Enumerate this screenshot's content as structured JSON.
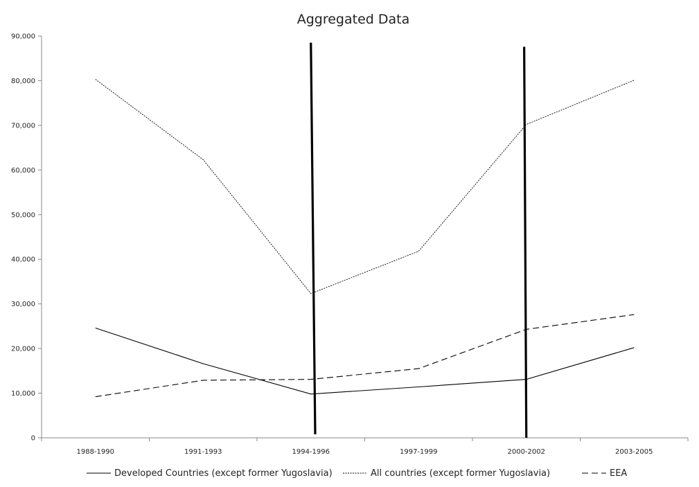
{
  "chart_data": {
    "type": "line",
    "title": "Aggregated Data",
    "xlabel": "",
    "ylabel": "",
    "categories": [
      "1988-1990",
      "1991-1993",
      "1994-1996",
      "1997-1999",
      "2000-2002",
      "2003-2005"
    ],
    "y_ticks": [
      "0",
      "10,000",
      "20,000",
      "30,000",
      "40,000",
      "50,000",
      "60,000",
      "70,000",
      "80,000",
      "90,000"
    ],
    "ylim": [
      0,
      90000
    ],
    "grid": false,
    "legend_position": "bottom",
    "series": [
      {
        "name": "Developed Countries (except former Yugoslavia)",
        "values": [
          24600,
          16600,
          9800,
          11400,
          13100,
          20200
        ],
        "style": "solid",
        "color": "#000000"
      },
      {
        "name": "All countries (except former Yugoslavia)",
        "values": [
          80300,
          62300,
          32300,
          41800,
          70200,
          80100
        ],
        "style": "dotted",
        "color": "#000000"
      },
      {
        "name": "EEA",
        "values": [
          9200,
          12900,
          13100,
          15500,
          24300,
          27600
        ],
        "style": "dashed",
        "color": "#000000"
      }
    ],
    "annotations": [
      {
        "type": "vertical-line",
        "x_from": 2.0,
        "x_to": 2.04,
        "y_from": 88500,
        "y_to": 800
      },
      {
        "type": "vertical-line",
        "x_from": 3.98,
        "x_to": 4.0,
        "y_from": 87600,
        "y_to": 0
      }
    ]
  }
}
